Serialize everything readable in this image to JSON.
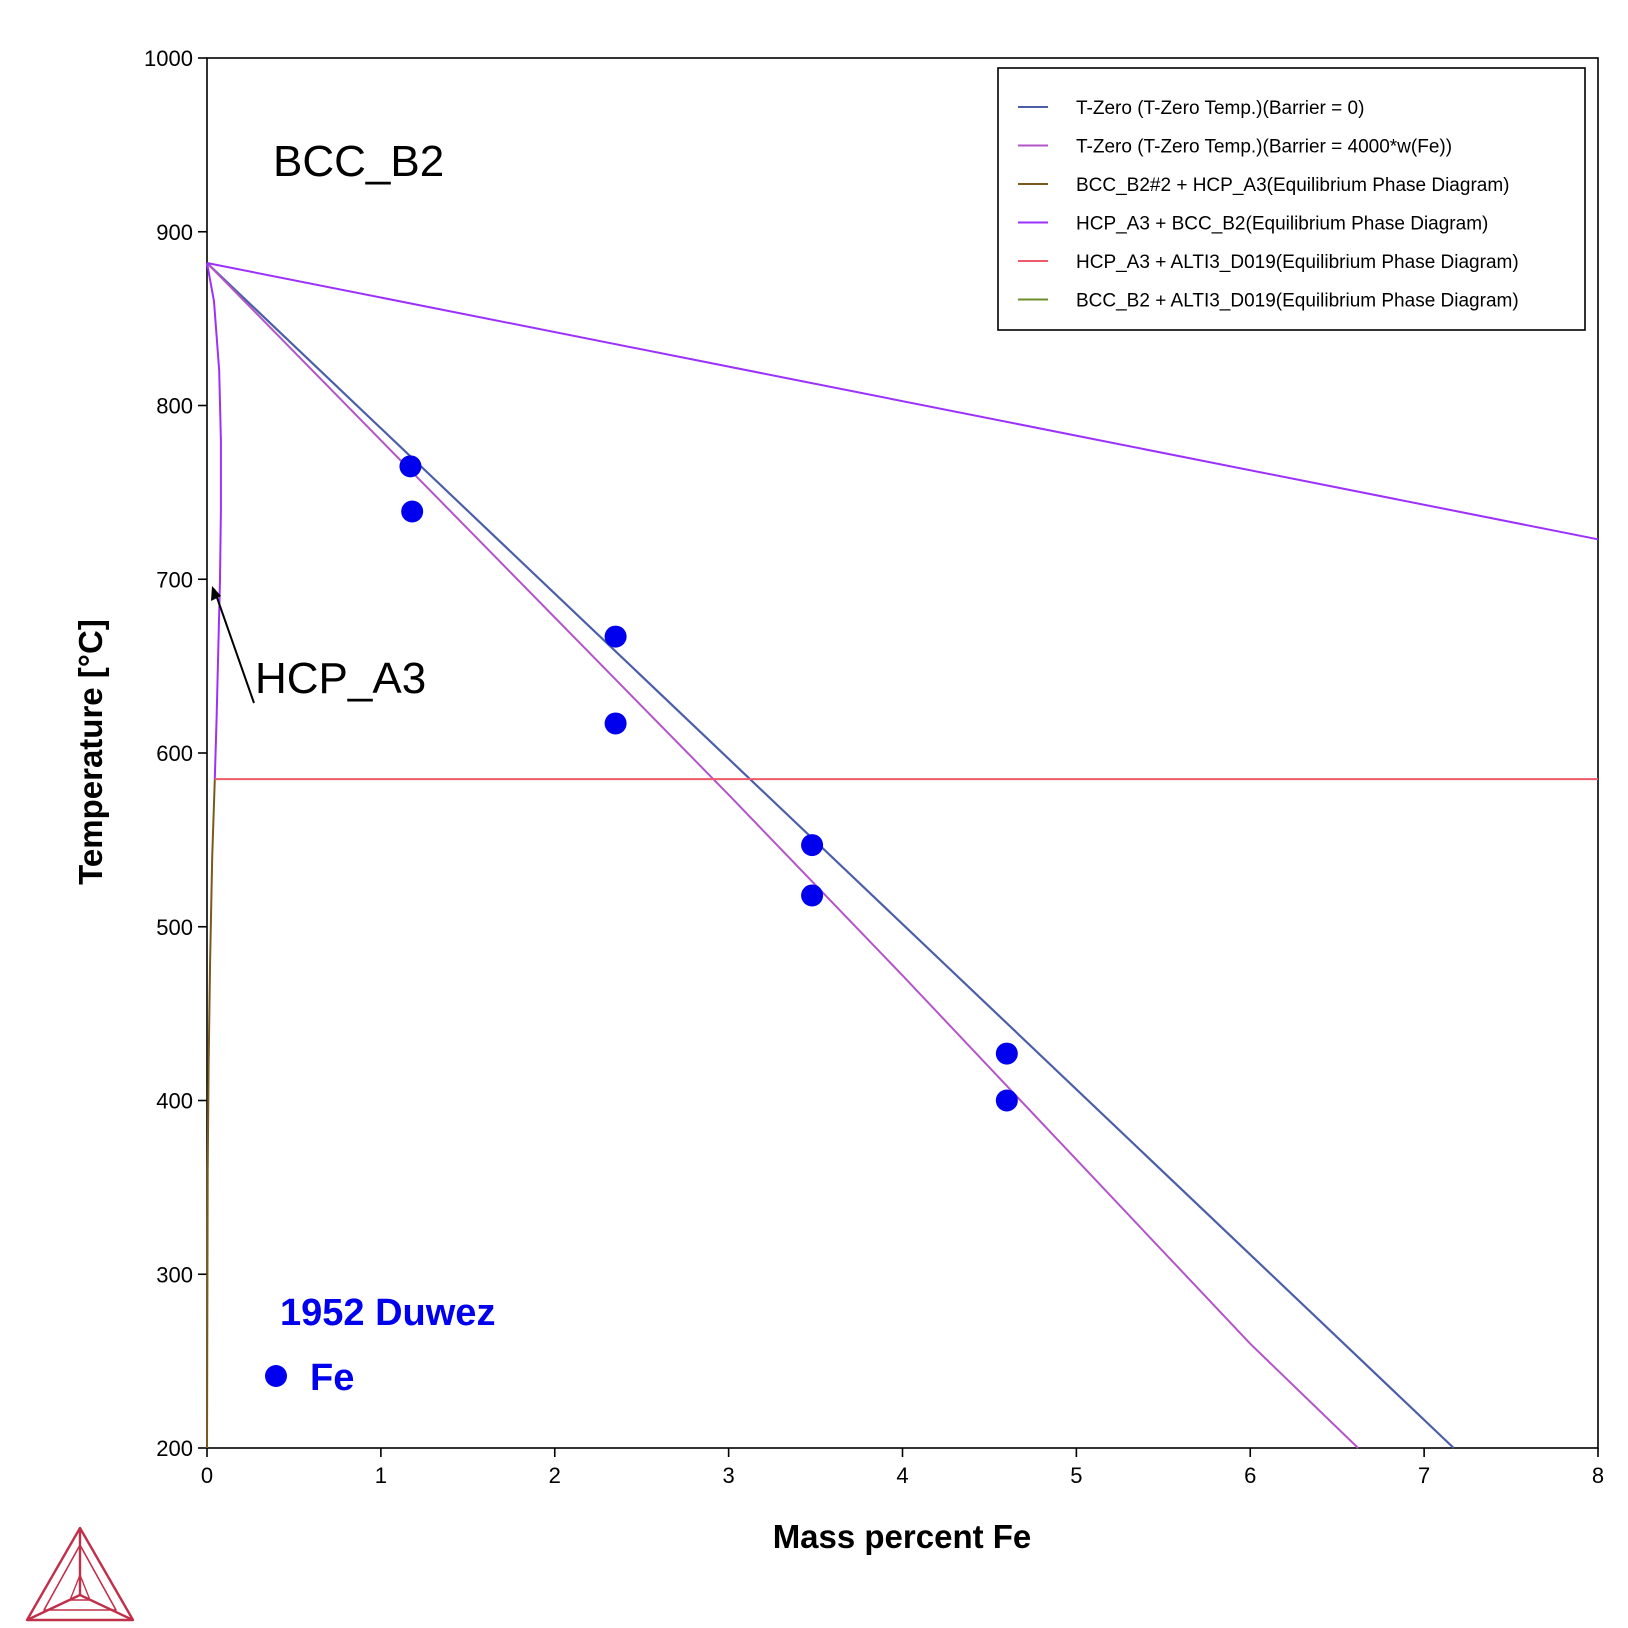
{
  "chart_data": {
    "type": "line",
    "xlabel": "Mass percent Fe",
    "ylabel": "Temperature [°C]",
    "xlim": [
      0,
      8
    ],
    "ylim": [
      200,
      1000
    ],
    "x_ticks": [
      "0",
      "1",
      "2",
      "3",
      "4",
      "5",
      "6",
      "7",
      "8"
    ],
    "y_ticks": [
      "200",
      "300",
      "400",
      "500",
      "600",
      "700",
      "800",
      "900",
      "1000"
    ],
    "grid": false,
    "legend_position": "top-right",
    "series": [
      {
        "name": "T-Zero (T-Zero Temp.)(Barrier = 0)",
        "color": "#4a5fa8",
        "points": [
          [
            0,
            882
          ],
          [
            7.17,
            200
          ]
        ]
      },
      {
        "name": "T-Zero (T-Zero Temp.)(Barrier = 4000*w(Fe))",
        "color": "#b355c8",
        "points": [
          [
            0,
            882
          ],
          [
            1.0,
            780
          ],
          [
            2.0,
            678
          ],
          [
            3.0,
            576
          ],
          [
            4.0,
            472
          ],
          [
            5.0,
            366
          ],
          [
            6.0,
            260
          ],
          [
            6.62,
            200
          ]
        ]
      },
      {
        "name": "BCC_B2#2 + HCP_A3(Equilibrium Phase Diagram)",
        "color": "#7a5a1c",
        "points": [
          [
            0.045,
            585
          ],
          [
            0.03,
            540
          ],
          [
            0.018,
            480
          ],
          [
            0.009,
            420
          ],
          [
            0.004,
            360
          ],
          [
            0.0,
            200
          ]
        ]
      },
      {
        "name": "HCP_A3 + BCC_B2(Equilibrium Phase Diagram)",
        "color": "#9b30ff",
        "points_upper": [
          [
            0,
            882
          ],
          [
            8,
            723
          ]
        ],
        "points_lower": [
          [
            0,
            882
          ],
          [
            0.04,
            860
          ],
          [
            0.07,
            820
          ],
          [
            0.08,
            780
          ],
          [
            0.08,
            740
          ],
          [
            0.075,
            700
          ],
          [
            0.065,
            660
          ],
          [
            0.055,
            620
          ],
          [
            0.045,
            585
          ]
        ]
      },
      {
        "name": "HCP_A3 + ALTI3_D019(Equilibrium Phase Diagram)",
        "color": "#ef5a6a",
        "points": [
          [
            0.045,
            585
          ],
          [
            8,
            585
          ]
        ]
      },
      {
        "name": "BCC_B2 + ALTI3_D019(Equilibrium Phase Diagram)",
        "color": "#6a8f2a",
        "points": []
      }
    ],
    "experimental": {
      "label": "1952 Duwez",
      "marker_label": "Fe",
      "color": "#0000ee",
      "points": [
        [
          1.17,
          765
        ],
        [
          1.18,
          739
        ],
        [
          2.35,
          667
        ],
        [
          2.35,
          617
        ],
        [
          3.48,
          547
        ],
        [
          3.48,
          518
        ],
        [
          4.6,
          427
        ],
        [
          4.6,
          400
        ]
      ]
    },
    "annotations": [
      "BCC_B2",
      "HCP_A3"
    ]
  },
  "logo": {
    "name": "thermo-calc-logo",
    "color": "#c0304a"
  }
}
